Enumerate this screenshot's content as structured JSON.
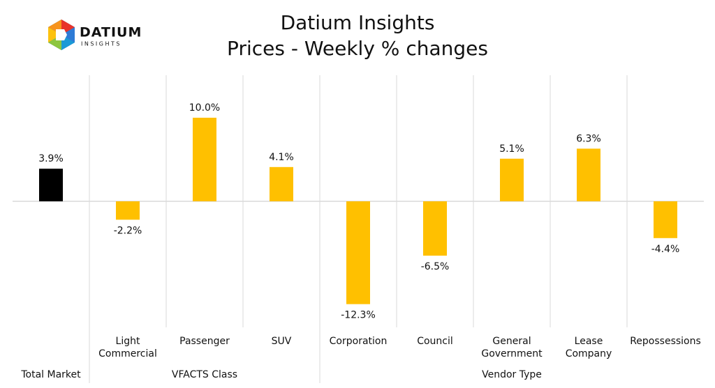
{
  "logo": {
    "name": "DATIUM",
    "tagline": "INSIGHTS"
  },
  "chart_data": {
    "type": "bar",
    "title": "Datium Insights",
    "subtitle": "Prices - Weekly % changes",
    "categories": [
      null,
      "Light Commercial",
      "Passenger",
      "SUV",
      "Corporation",
      "Council",
      "General Government",
      "Lease Company",
      "Repossessions"
    ],
    "category_groups": [
      "Total Market",
      "VFACTS Class",
      "VFACTS Class",
      "VFACTS Class",
      "Vendor Type",
      "Vendor Type",
      "Vendor Type",
      "Vendor Type",
      "Vendor Type"
    ],
    "values": [
      3.9,
      -2.2,
      10.0,
      4.1,
      -12.3,
      -6.5,
      5.1,
      6.3,
      -4.4
    ],
    "value_labels": [
      "3.9%",
      "-2.2%",
      "10.0%",
      "4.1%",
      "-12.3%",
      "-6.5%",
      "5.1%",
      "6.3%",
      "-4.4%"
    ],
    "colors": [
      "#000000",
      "#ffc000",
      "#ffc000",
      "#ffc000",
      "#ffc000",
      "#ffc000",
      "#ffc000",
      "#ffc000",
      "#ffc000"
    ]
  }
}
